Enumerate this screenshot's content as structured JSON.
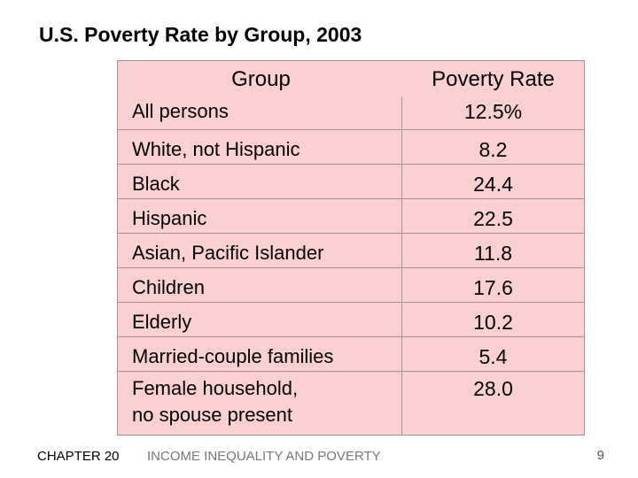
{
  "slide": {
    "title": "U.S. Poverty Rate by Group, 2003"
  },
  "table": {
    "headers": {
      "group": "Group",
      "rate": "Poverty Rate"
    },
    "rows": [
      {
        "group": "All persons",
        "rate": "12.5%"
      },
      {
        "group": "White, not Hispanic",
        "rate": "8.2"
      },
      {
        "group": "Black",
        "rate": "24.4"
      },
      {
        "group": "Hispanic",
        "rate": "22.5"
      },
      {
        "group": "Asian, Pacific Islander",
        "rate": "11.8"
      },
      {
        "group": "Children",
        "rate": "17.6"
      },
      {
        "group": "Elderly",
        "rate": "10.2"
      },
      {
        "group": "Married-couple families",
        "rate": "5.4"
      },
      {
        "group": "Female household,\nno spouse present",
        "rate": "28.0"
      }
    ]
  },
  "footer": {
    "chapter": "CHAPTER 20",
    "topic": "INCOME INEQUALITY AND POVERTY",
    "page": "9"
  },
  "colors": {
    "table_bg": "#fbd0d0",
    "border": "#a98f8f"
  }
}
